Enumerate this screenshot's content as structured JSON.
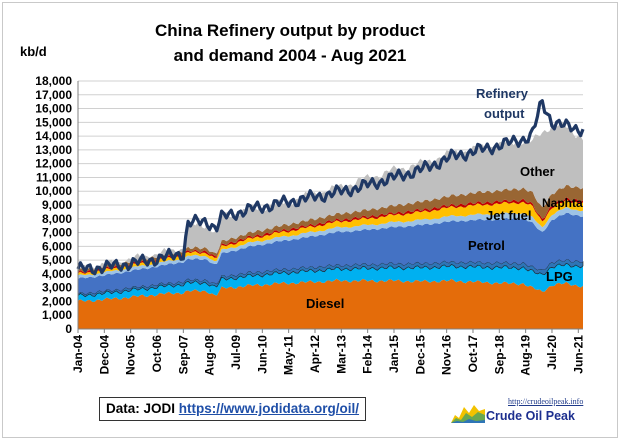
{
  "title_lines": [
    "China  Refinery output by product",
    "and demand 2004 - Aug 2021"
  ],
  "unit": "kb/d",
  "source_prefix": "Data: JODI",
  "source_url": "https://www.jodidata.org/oil/",
  "brand_url": "http://crudeoilpeak.info",
  "brand_name": "Crude Oil Peak",
  "chart_data": {
    "type": "area",
    "title": "China  Refinery output by product and demand 2004 - Aug 2021",
    "ylabel": "kb/d",
    "ylim": [
      0,
      18000
    ],
    "yticks": [
      0,
      1000,
      2000,
      3000,
      4000,
      5000,
      6000,
      7000,
      8000,
      9000,
      10000,
      11000,
      12000,
      13000,
      14000,
      15000,
      16000,
      17000,
      18000
    ],
    "ytick_labels": [
      "0",
      "1,000",
      "2,000",
      "3,000",
      "4,000",
      "5,000",
      "6,000",
      "7,000",
      "8,000",
      "9,000",
      "10,000",
      "11,000",
      "12,000",
      "13,000",
      "14,000",
      "15,000",
      "16,000",
      "17,000",
      "18,000"
    ],
    "x_start": "Jan-04",
    "x_end": "Aug-21",
    "xtick_labels": [
      "Jan-04",
      "Dec-04",
      "Nov-05",
      "Oct-06",
      "Sep-07",
      "Aug-08",
      "Jul-09",
      "Jun-10",
      "May-11",
      "Apr-12",
      "Mar-13",
      "Feb-14",
      "Jan-15",
      "Dec-15",
      "Nov-16",
      "Oct-17",
      "Sep-18",
      "Aug-19",
      "Jul-20",
      "Jun-21"
    ],
    "grid": true,
    "stacked": true,
    "x": [
      2004.0,
      2005.0,
      2006.0,
      2007.0,
      2007.7,
      2007.8,
      2008.5,
      2008.8,
      2009.0,
      2010.0,
      2011.0,
      2012.0,
      2013.0,
      2014.0,
      2015.0,
      2016.0,
      2017.0,
      2018.0,
      2019.0,
      2019.5,
      2019.8,
      2020.15,
      2020.5,
      2021.0,
      2021.58
    ],
    "series": [
      {
        "name": "Diesel",
        "color": "#e46c0a",
        "values": [
          2000,
          2150,
          2350,
          2550,
          2650,
          2750,
          2750,
          2400,
          2950,
          3150,
          3300,
          3400,
          3500,
          3500,
          3500,
          3450,
          3500,
          3400,
          3300,
          3300,
          3000,
          2700,
          3200,
          3300,
          3100
        ]
      },
      {
        "name": "LPG",
        "color": "#00b0f0",
        "values": [
          400,
          450,
          500,
          550,
          600,
          600,
          600,
          600,
          650,
          700,
          750,
          800,
          850,
          900,
          950,
          1000,
          1050,
          1100,
          1150,
          1150,
          1150,
          1250,
          1300,
          1350,
          1450
        ]
      },
      {
        "name": "",
        "color": "#2e75b6",
        "values": [
          150,
          160,
          170,
          180,
          190,
          200,
          200,
          190,
          210,
          230,
          250,
          260,
          270,
          280,
          290,
          300,
          310,
          320,
          330,
          330,
          330,
          320,
          330,
          340,
          340
        ]
      },
      {
        "name": "Petrol",
        "color": "#4472c4",
        "values": [
          1100,
          1150,
          1250,
          1350,
          1450,
          1500,
          1500,
          1400,
          1650,
          1900,
          2050,
          2200,
          2400,
          2500,
          2650,
          2800,
          2950,
          3100,
          3200,
          3250,
          3250,
          2700,
          3100,
          3400,
          3300
        ]
      },
      {
        "name": "",
        "color": "#9dc3e6",
        "values": [
          200,
          210,
          220,
          230,
          240,
          250,
          250,
          240,
          260,
          280,
          300,
          320,
          330,
          340,
          360,
          370,
          380,
          390,
          400,
          400,
          400,
          380,
          390,
          400,
          400
        ]
      },
      {
        "name": "Jet fuel",
        "color": "#ffc000",
        "values": [
          150,
          170,
          190,
          210,
          220,
          230,
          230,
          220,
          250,
          300,
          340,
          380,
          420,
          470,
          520,
          580,
          640,
          700,
          750,
          780,
          800,
          450,
          500,
          520,
          550
        ]
      },
      {
        "name": "",
        "color": "#c00000",
        "values": [
          100,
          100,
          100,
          100,
          110,
          110,
          110,
          110,
          110,
          120,
          120,
          130,
          130,
          140,
          140,
          150,
          150,
          160,
          160,
          160,
          160,
          150,
          150,
          160,
          160
        ]
      },
      {
        "name": "Naphta",
        "color": "#996633",
        "values": [
          150,
          170,
          190,
          210,
          220,
          230,
          230,
          220,
          250,
          300,
          340,
          380,
          420,
          470,
          530,
          600,
          680,
          750,
          800,
          830,
          850,
          800,
          850,
          900,
          950
        ]
      },
      {
        "name": "Other",
        "color": "#bfbfbf",
        "values": [
          100,
          100,
          150,
          150,
          200,
          1600,
          1700,
          1600,
          1800,
          1700,
          1600,
          1800,
          1900,
          2300,
          2600,
          2800,
          3100,
          3200,
          3400,
          3500,
          3600,
          5500,
          5000,
          4300,
          3600
        ]
      }
    ],
    "line_series": [
      {
        "name": "Refinery output",
        "color": "#1f3864",
        "values": [
          4300,
          4500,
          4800,
          5200,
          5500,
          7700,
          7800,
          7300,
          8100,
          8700,
          9100,
          9500,
          9900,
          10400,
          11000,
          11600,
          12500,
          13000,
          13500,
          13800,
          14000,
          16500,
          15000,
          14700,
          14500
        ]
      }
    ]
  },
  "annotations": {
    "refinery_line1": "Refinery",
    "refinery_line2": "output",
    "other": "Other",
    "naphta": "Naphta",
    "jet_fuel": "Jet fuel",
    "petrol": "Petrol",
    "lpg": "LPG",
    "diesel": "Diesel"
  }
}
